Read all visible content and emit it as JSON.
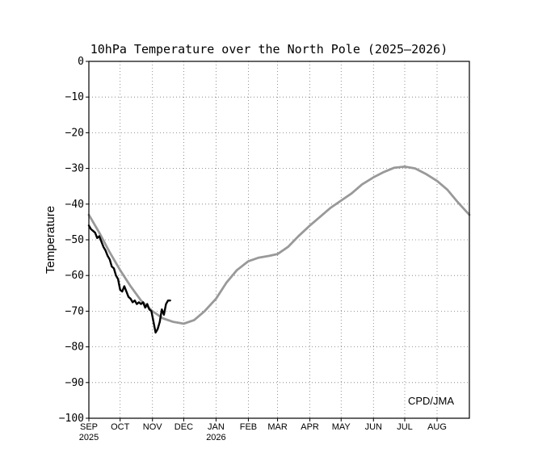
{
  "chart_data": {
    "type": "line",
    "title": "10hPa Temperature over the North Pole (2025–2026)",
    "ylabel": "Temperature",
    "xlabel": "",
    "ylim": [
      -100,
      0
    ],
    "yticks": [
      0,
      -10,
      -20,
      -30,
      -40,
      -50,
      -60,
      -70,
      -80,
      -90,
      -100
    ],
    "ytick_labels": [
      "0",
      "−10",
      "−20",
      "−30",
      "−40",
      "−50",
      "−60",
      "−70",
      "−80",
      "−90",
      "−100"
    ],
    "xlim": [
      "2025-09-01",
      "2026-09-01"
    ],
    "month_ticks": [
      {
        "date": "2025-09-01",
        "label": "SEP",
        "year": "2025"
      },
      {
        "date": "2025-10-01",
        "label": "OCT"
      },
      {
        "date": "2025-11-01",
        "label": "NOV"
      },
      {
        "date": "2025-12-01",
        "label": "DEC"
      },
      {
        "date": "2026-01-01",
        "label": "JAN",
        "year": "2026"
      },
      {
        "date": "2026-02-01",
        "label": "FEB"
      },
      {
        "date": "2026-03-01",
        "label": "MAR"
      },
      {
        "date": "2026-04-01",
        "label": "APR"
      },
      {
        "date": "2026-05-01",
        "label": "MAY"
      },
      {
        "date": "2026-06-01",
        "label": "JUN"
      },
      {
        "date": "2026-07-01",
        "label": "JUL"
      },
      {
        "date": "2026-08-01",
        "label": "AUG"
      }
    ],
    "grid": true,
    "grid_style": "dotted",
    "annotation": "CPD/JMA",
    "series": [
      {
        "color": "#999999",
        "x": [
          "2025-09-01",
          "2025-09-11",
          "2025-09-21",
          "2025-10-01",
          "2025-10-11",
          "2025-10-21",
          "2025-11-01",
          "2025-11-11",
          "2025-11-21",
          "2025-12-01",
          "2025-12-11",
          "2025-12-21",
          "2026-01-01",
          "2026-01-11",
          "2026-01-21",
          "2026-02-01",
          "2026-02-11",
          "2026-02-21",
          "2026-03-01",
          "2026-03-11",
          "2026-03-21",
          "2026-04-01",
          "2026-04-11",
          "2026-04-21",
          "2026-05-01",
          "2026-05-11",
          "2026-05-21",
          "2026-06-01",
          "2026-06-11",
          "2026-06-21",
          "2026-07-01",
          "2026-07-11",
          "2026-07-21",
          "2026-08-01",
          "2026-08-11",
          "2026-08-21",
          "2026-09-01"
        ],
        "y": [
          -43,
          -48,
          -53.5,
          -58.5,
          -63,
          -67,
          -70,
          -72,
          -73,
          -73.5,
          -72.5,
          -70,
          -66.5,
          -62,
          -58.5,
          -56,
          -55,
          -54.5,
          -54,
          -52,
          -49,
          -46,
          -43.5,
          -41,
          -39,
          -37,
          -34.5,
          -32.5,
          -31,
          -29.8,
          -29.5,
          -30,
          -31.5,
          -33.5,
          -36,
          -39.5,
          -43
        ]
      },
      {
        "color": "#000000",
        "x": [
          "2025-09-01",
          "2025-09-03",
          "2025-09-05",
          "2025-09-07",
          "2025-09-09",
          "2025-09-11",
          "2025-09-13",
          "2025-09-15",
          "2025-09-17",
          "2025-09-19",
          "2025-09-21",
          "2025-09-23",
          "2025-09-25",
          "2025-09-27",
          "2025-09-29",
          "2025-10-01",
          "2025-10-03",
          "2025-10-05",
          "2025-10-07",
          "2025-10-09",
          "2025-10-11",
          "2025-10-13",
          "2025-10-15",
          "2025-10-17",
          "2025-10-19",
          "2025-10-21",
          "2025-10-23",
          "2025-10-25",
          "2025-10-27",
          "2025-10-29",
          "2025-10-31",
          "2025-11-02",
          "2025-11-04",
          "2025-11-06",
          "2025-11-08",
          "2025-11-10",
          "2025-11-12",
          "2025-11-14",
          "2025-11-16",
          "2025-11-18"
        ],
        "y": [
          -46,
          -47,
          -47.5,
          -48,
          -49.5,
          -49,
          -50.5,
          -52,
          -53,
          -54.5,
          -55.5,
          -57.5,
          -58,
          -60,
          -61,
          -64,
          -64.5,
          -63,
          -64.5,
          -66,
          -66.5,
          -67.5,
          -67,
          -68,
          -67.5,
          -68,
          -67.5,
          -69,
          -68,
          -69.5,
          -70,
          -73,
          -76,
          -75,
          -73,
          -69.5,
          -71,
          -68,
          -67,
          -67
        ]
      }
    ]
  }
}
